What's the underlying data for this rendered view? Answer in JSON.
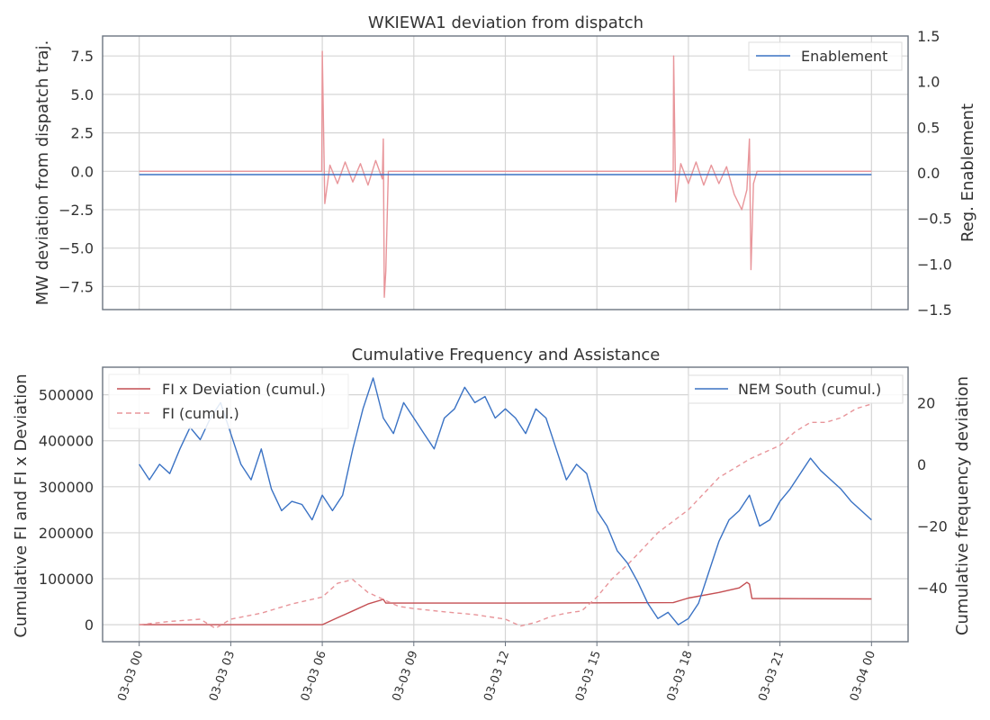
{
  "colors": {
    "blue": "#3a72c4",
    "red": "#c44e52",
    "pink": "#e8959a",
    "grid": "#d5d5d5",
    "spine": "#6b7480",
    "text": "#333333"
  },
  "chart_data": [
    {
      "type": "line",
      "title": "WKIEWA1 deviation from dispatch",
      "ylabel": "MW deviation from dispatch traj.",
      "ylabel_right": "Reg. Enablement",
      "xlim": [
        "2023-03-02T22:48",
        "2023-03-04T01:12"
      ],
      "ylim": [
        -9.0,
        8.8
      ],
      "ylim_right": [
        -1.5,
        1.5
      ],
      "yticks": [
        7.5,
        5.0,
        2.5,
        0.0,
        -2.5,
        -5.0,
        -7.5
      ],
      "ytick_labels": [
        "7.5",
        "5.0",
        "2.5",
        "0.0",
        "−2.5",
        "−5.0",
        "−7.5"
      ],
      "yticks_right": [
        1.5,
        1.0,
        0.5,
        0.0,
        -0.5,
        -1.0,
        -1.5
      ],
      "ytick_labels_right": [
        "1.5",
        "1.0",
        "0.5",
        "0.0",
        "−0.5",
        "−1.0",
        "−1.5"
      ],
      "grid": true,
      "legend_position": "top-right",
      "series": [
        {
          "name": "",
          "axis": "left",
          "color": "#e8959a",
          "x": [
            "03-03 00:00",
            "03-03 05:59",
            "03-03 06:00",
            "03-03 06:05",
            "03-03 06:15",
            "03-03 06:30",
            "03-03 06:45",
            "03-03 07:00",
            "03-03 07:15",
            "03-03 07:30",
            "03-03 07:45",
            "03-03 07:58",
            "03-03 08:00",
            "03-03 08:02",
            "03-03 08:05",
            "03-03 08:10",
            "03-03 12:00",
            "03-03 17:30",
            "03-03 17:31",
            "03-03 17:35",
            "03-03 17:45",
            "03-03 18:00",
            "03-03 18:15",
            "03-03 18:30",
            "03-03 18:45",
            "03-03 19:00",
            "03-03 19:15",
            "03-03 19:30",
            "03-03 19:45",
            "03-03 19:55",
            "03-03 20:00",
            "03-03 20:03",
            "03-03 20:08",
            "03-03 20:15",
            "03-03 24:00"
          ],
          "y": [
            0.0,
            0.0,
            7.8,
            -2.1,
            0.4,
            -0.8,
            0.6,
            -0.7,
            0.5,
            -0.9,
            0.7,
            -0.5,
            2.1,
            -8.2,
            -6.5,
            0.0,
            0.0,
            0.0,
            7.5,
            -2.0,
            0.5,
            -0.8,
            0.6,
            -0.9,
            0.4,
            -0.8,
            0.3,
            -1.5,
            -2.5,
            -1.2,
            2.1,
            -6.4,
            -0.8,
            0.0,
            0.0
          ]
        },
        {
          "name": "Enablement",
          "axis": "right",
          "color": "#3a72c4",
          "x": [
            "03-03 00:00",
            "03-03 24:00"
          ],
          "y": [
            -0.02,
            -0.02
          ]
        }
      ]
    },
    {
      "type": "line",
      "title": "Cumulative Frequency and Assistance",
      "ylabel": "Cumulative FI and FI x Deviation",
      "ylabel_right": "Cumulative frequency deviation",
      "xlabel": "",
      "xlim": [
        "2023-03-02T22:48",
        "2023-03-04T01:12"
      ],
      "ylim": [
        -37000,
        560000
      ],
      "ylim_right": [
        -57.5,
        31.5
      ],
      "yticks": [
        500000,
        400000,
        300000,
        200000,
        100000,
        0
      ],
      "ytick_labels": [
        "500000",
        "400000",
        "300000",
        "200000",
        "100000",
        "0"
      ],
      "yticks_right": [
        20,
        0,
        -20,
        -40
      ],
      "ytick_labels_right": [
        "20",
        "0",
        "−20",
        "−40"
      ],
      "xticks": [
        "03-03 00:00",
        "03-03 03:00",
        "03-03 06:00",
        "03-03 09:00",
        "03-03 12:00",
        "03-03 15:00",
        "03-03 18:00",
        "03-03 21:00",
        "03-04 00:00"
      ],
      "xtick_labels": [
        "03-03 00",
        "03-03 03",
        "03-03 06",
        "03-03 09",
        "03-03 12",
        "03-03 15",
        "03-03 18",
        "03-03 21",
        "03-04 00"
      ],
      "grid": true,
      "legend_position": "top-left (FI series), top-right (NEM South)",
      "series": [
        {
          "name": "FI x Deviation (cumul.)",
          "axis": "left",
          "color": "#c44e52",
          "style": "solid",
          "x": [
            "03-03 00:00",
            "03-03 06:00",
            "03-03 06:30",
            "03-03 07:00",
            "03-03 07:30",
            "03-03 08:00",
            "03-03 08:05",
            "03-03 12:00",
            "03-03 17:30",
            "03-03 18:00",
            "03-03 19:00",
            "03-03 19:40",
            "03-03 19:55",
            "03-03 20:00",
            "03-03 20:05",
            "03-04 00:00"
          ],
          "y": [
            0,
            0,
            15000,
            30000,
            45000,
            55000,
            47000,
            47000,
            48000,
            58000,
            70000,
            80000,
            92000,
            88000,
            57000,
            56000
          ]
        },
        {
          "name": "FI (cumul.)",
          "axis": "left",
          "color": "#e8959a",
          "style": "dashed",
          "x": [
            "03-03 00:00",
            "03-03 01:00",
            "03-03 02:00",
            "03-03 02:30",
            "03-03 03:00",
            "03-03 04:00",
            "03-03 05:00",
            "03-03 06:00",
            "03-03 06:30",
            "03-03 07:00",
            "03-03 07:30",
            "03-03 08:00",
            "03-03 08:30",
            "03-03 09:00",
            "03-03 10:00",
            "03-03 11:00",
            "03-03 12:00",
            "03-03 12:30",
            "03-03 13:00",
            "03-03 13:30",
            "03-03 14:00",
            "03-03 14:30",
            "03-03 15:00",
            "03-03 15:30",
            "03-03 16:00",
            "03-03 16:30",
            "03-03 17:00",
            "03-03 17:30",
            "03-03 18:00",
            "03-03 18:30",
            "03-03 19:00",
            "03-03 19:30",
            "03-03 20:00",
            "03-03 20:30",
            "03-03 21:00",
            "03-03 21:30",
            "03-03 22:00",
            "03-03 22:30",
            "03-03 23:00",
            "03-03 23:30",
            "03-04 00:00"
          ],
          "y": [
            0,
            7000,
            12000,
            -8000,
            12000,
            25000,
            45000,
            60000,
            90000,
            98000,
            70000,
            55000,
            40000,
            35000,
            28000,
            22000,
            12000,
            -3000,
            5000,
            18000,
            25000,
            30000,
            60000,
            100000,
            130000,
            165000,
            200000,
            225000,
            250000,
            285000,
            320000,
            340000,
            360000,
            375000,
            390000,
            420000,
            440000,
            440000,
            450000,
            470000,
            480000
          ]
        },
        {
          "name": "NEM South (cumul.)",
          "axis": "right",
          "color": "#3a72c4",
          "style": "solid",
          "x": [
            "03-03 00:00",
            "03-03 00:20",
            "03-03 00:40",
            "03-03 01:00",
            "03-03 01:20",
            "03-03 01:40",
            "03-03 02:00",
            "03-03 02:20",
            "03-03 02:40",
            "03-03 03:00",
            "03-03 03:20",
            "03-03 03:40",
            "03-03 04:00",
            "03-03 04:20",
            "03-03 04:40",
            "03-03 05:00",
            "03-03 05:20",
            "03-03 05:40",
            "03-03 06:00",
            "03-03 06:20",
            "03-03 06:40",
            "03-03 07:00",
            "03-03 07:20",
            "03-03 07:40",
            "03-03 08:00",
            "03-03 08:20",
            "03-03 08:40",
            "03-03 09:00",
            "03-03 09:20",
            "03-03 09:40",
            "03-03 10:00",
            "03-03 10:20",
            "03-03 10:40",
            "03-03 11:00",
            "03-03 11:20",
            "03-03 11:40",
            "03-03 12:00",
            "03-03 12:20",
            "03-03 12:40",
            "03-03 13:00",
            "03-03 13:20",
            "03-03 13:40",
            "03-03 14:00",
            "03-03 14:20",
            "03-03 14:40",
            "03-03 15:00",
            "03-03 15:20",
            "03-03 15:40",
            "03-03 16:00",
            "03-03 16:20",
            "03-03 16:40",
            "03-03 17:00",
            "03-03 17:20",
            "03-03 17:40",
            "03-03 18:00",
            "03-03 18:20",
            "03-03 18:40",
            "03-03 19:00",
            "03-03 19:20",
            "03-03 19:40",
            "03-03 20:00",
            "03-03 20:20",
            "03-03 20:40",
            "03-03 21:00",
            "03-03 21:20",
            "03-03 21:40",
            "03-03 22:00",
            "03-03 22:20",
            "03-03 22:40",
            "03-03 23:00",
            "03-03 23:20",
            "03-03 23:40",
            "03-04 00:00"
          ],
          "y": [
            0,
            -5,
            0,
            -3,
            5,
            12,
            8,
            15,
            20,
            10,
            0,
            -5,
            5,
            -8,
            -15,
            -12,
            -13,
            -18,
            -10,
            -15,
            -10,
            5,
            18,
            28,
            15,
            10,
            20,
            15,
            10,
            5,
            15,
            18,
            25,
            20,
            22,
            15,
            18,
            15,
            10,
            18,
            15,
            5,
            -5,
            0,
            -3,
            -15,
            -20,
            -28,
            -32,
            -38,
            -45,
            -50,
            -48,
            -52,
            -50,
            -45,
            -35,
            -25,
            -18,
            -15,
            -10,
            -20,
            -18,
            -12,
            -8,
            -3,
            2,
            -2,
            -5,
            -8,
            -12,
            -15,
            -18
          ]
        }
      ]
    }
  ]
}
